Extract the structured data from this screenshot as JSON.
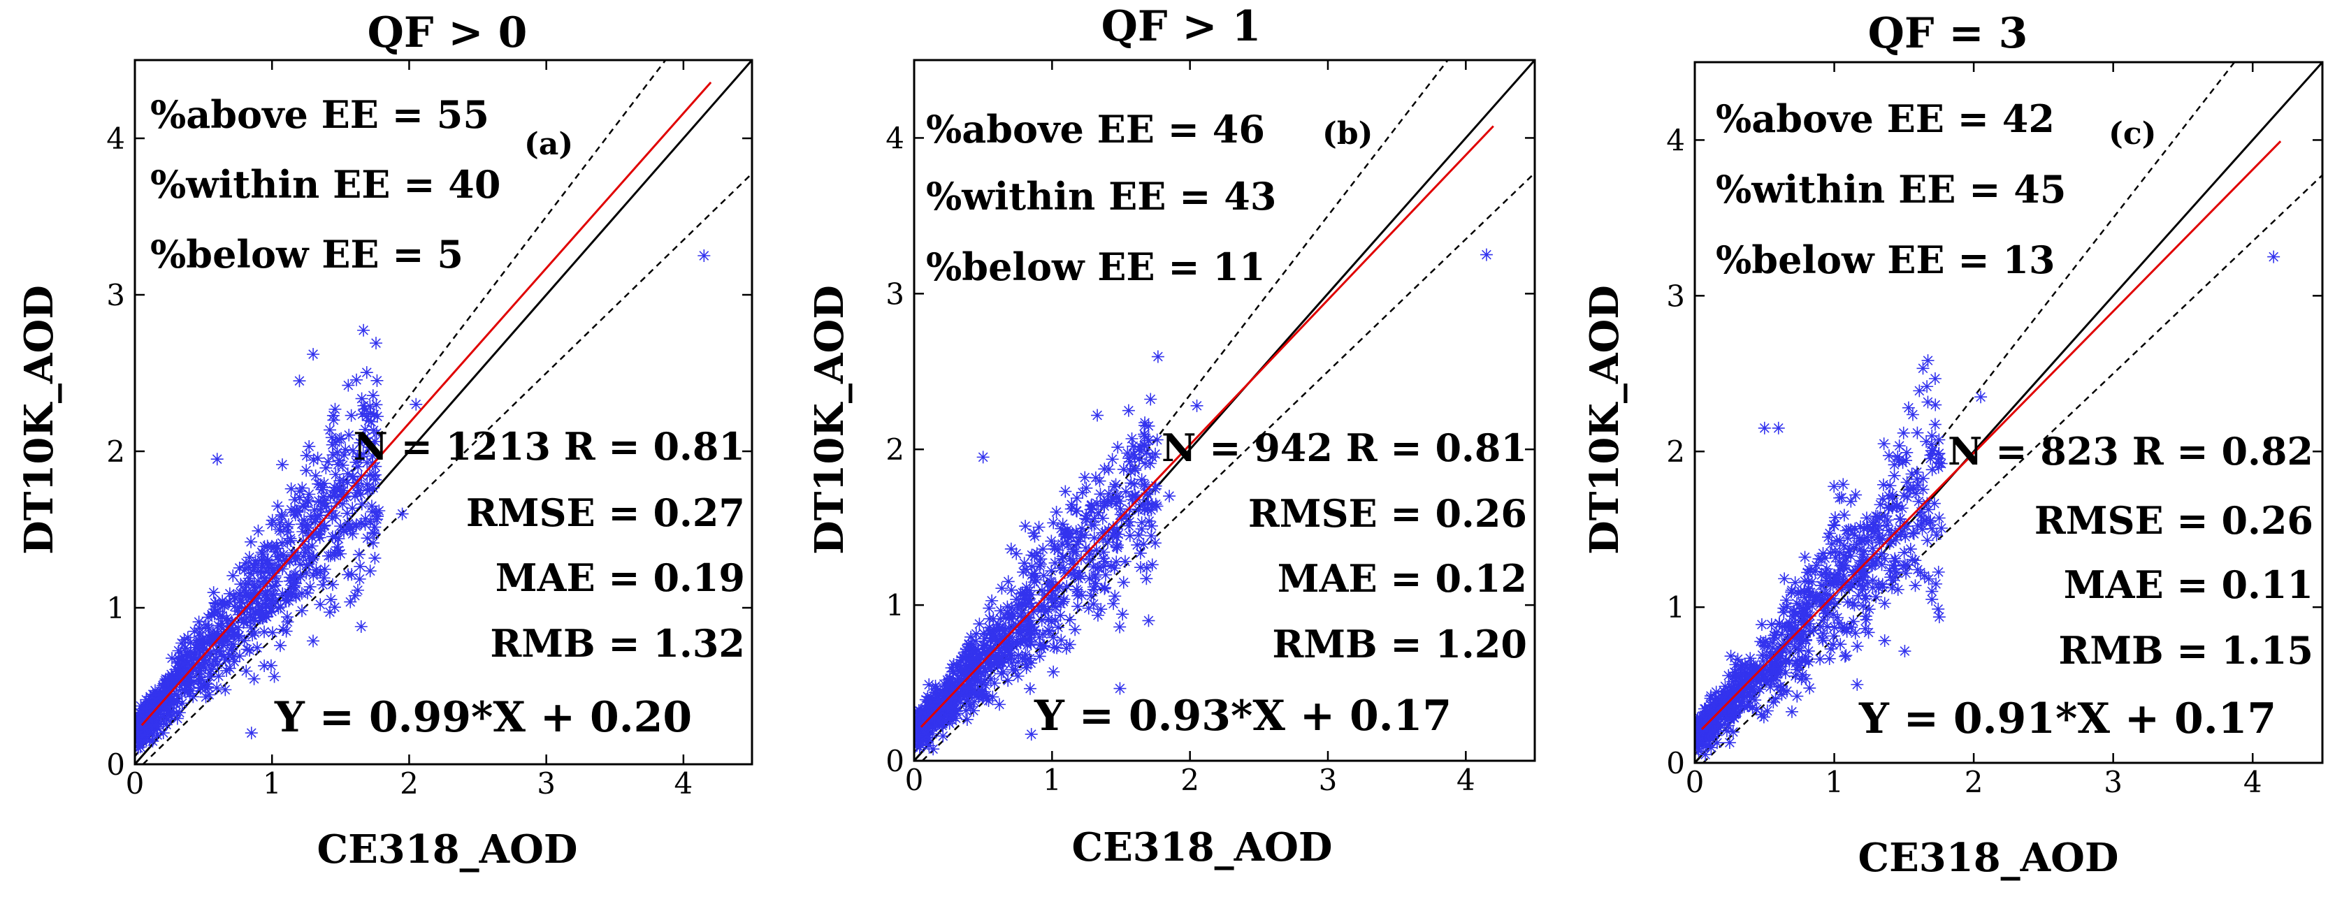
{
  "chart_data": [
    {
      "type": "scatter",
      "panel_label": "(a)",
      "title": "QF > 0",
      "xlabel": "CE318_AOD",
      "ylabel": "DT10K_AOD",
      "xlim": [
        0,
        4.5
      ],
      "ylim": [
        0,
        4.5
      ],
      "xticks": [
        "0",
        "1",
        "2",
        "3",
        "4"
      ],
      "yticks": [
        "0",
        "1",
        "2",
        "3",
        "4"
      ],
      "stats": {
        "above": "%above EE = 55",
        "within": "%within EE = 40",
        "below": "%below EE = 5",
        "nr": "N = 1213 R = 0.81",
        "rmse": "RMSE = 0.27",
        "mae": "MAE = 0.19",
        "rmb": "RMB = 1.32",
        "equation": "Y = 0.99*X + 0.20"
      },
      "fit": {
        "slope": 0.99,
        "intercept": 0.2,
        "x_range": [
          0.05,
          4.2
        ]
      },
      "n_points": 1213,
      "outliers": [
        [
          4.15,
          3.25
        ],
        [
          1.3,
          2.62
        ],
        [
          1.2,
          2.45
        ],
        [
          0.6,
          1.95
        ],
        [
          0.85,
          0.2
        ],
        [
          2.05,
          2.3
        ],
        [
          1.95,
          1.6
        ],
        [
          1.65,
          0.88
        ],
        [
          1.78,
          1.62
        ],
        [
          1.55,
          1.8
        ]
      ],
      "colors": {
        "points": "#3333ee",
        "fit": "#e00000",
        "one_to_one": "#000000",
        "ee": "#000000"
      }
    },
    {
      "type": "scatter",
      "panel_label": "(b)",
      "title": "QF > 1",
      "xlabel": "CE318_AOD",
      "ylabel": "DT10K_AOD",
      "xlim": [
        0,
        4.5
      ],
      "ylim": [
        0,
        4.5
      ],
      "xticks": [
        "0",
        "1",
        "2",
        "3",
        "4"
      ],
      "yticks": [
        "0",
        "1",
        "2",
        "3",
        "4"
      ],
      "stats": {
        "above": "%above EE = 46",
        "within": "%within EE = 43",
        "below": "%below EE = 11",
        "nr": "N = 942 R = 0.81",
        "rmse": "RMSE = 0.26",
        "mae": "MAE = 0.12",
        "rmb": "RMB = 1.20",
        "equation": "Y = 0.93*X + 0.17"
      },
      "fit": {
        "slope": 0.93,
        "intercept": 0.17,
        "x_range": [
          0.05,
          4.2
        ]
      },
      "n_points": 942,
      "outliers": [
        [
          4.15,
          3.25
        ],
        [
          2.05,
          2.28
        ],
        [
          1.7,
          2.15
        ],
        [
          0.5,
          1.95
        ],
        [
          0.85,
          0.17
        ],
        [
          1.7,
          0.9
        ],
        [
          1.85,
          1.7
        ],
        [
          1.6,
          1.95
        ]
      ],
      "colors": {
        "points": "#3333ee",
        "fit": "#e00000",
        "one_to_one": "#000000",
        "ee": "#000000"
      }
    },
    {
      "type": "scatter",
      "panel_label": "(c)",
      "title": "QF = 3",
      "xlabel": "CE318_AOD",
      "ylabel": "DT10K_AOD",
      "xlim": [
        0,
        4.5
      ],
      "ylim": [
        0,
        4.5
      ],
      "xticks": [
        "0",
        "1",
        "2",
        "3",
        "4"
      ],
      "yticks": [
        "0",
        "1",
        "2",
        "3",
        "4"
      ],
      "stats": {
        "above": "%above EE = 42",
        "within": "%within EE = 45",
        "below": "%below EE = 13",
        "nr": "N = 823 R = 0.82",
        "rmse": "RMSE = 0.26",
        "mae": "MAE = 0.11",
        "rmb": "RMB = 1.15",
        "equation": "Y = 0.91*X + 0.17"
      },
      "fit": {
        "slope": 0.91,
        "intercept": 0.17,
        "x_range": [
          0.05,
          4.2
        ]
      },
      "n_points": 823,
      "outliers": [
        [
          4.15,
          3.25
        ],
        [
          2.05,
          2.35
        ],
        [
          0.5,
          2.15
        ],
        [
          0.6,
          2.15
        ],
        [
          1.7,
          1.05
        ],
        [
          1.7,
          2.1
        ],
        [
          1.4,
          1.78
        ],
        [
          1.58,
          1.3
        ]
      ],
      "colors": {
        "points": "#3333ee",
        "fit": "#e00000",
        "one_to_one": "#000000",
        "ee": "#000000"
      }
    }
  ]
}
